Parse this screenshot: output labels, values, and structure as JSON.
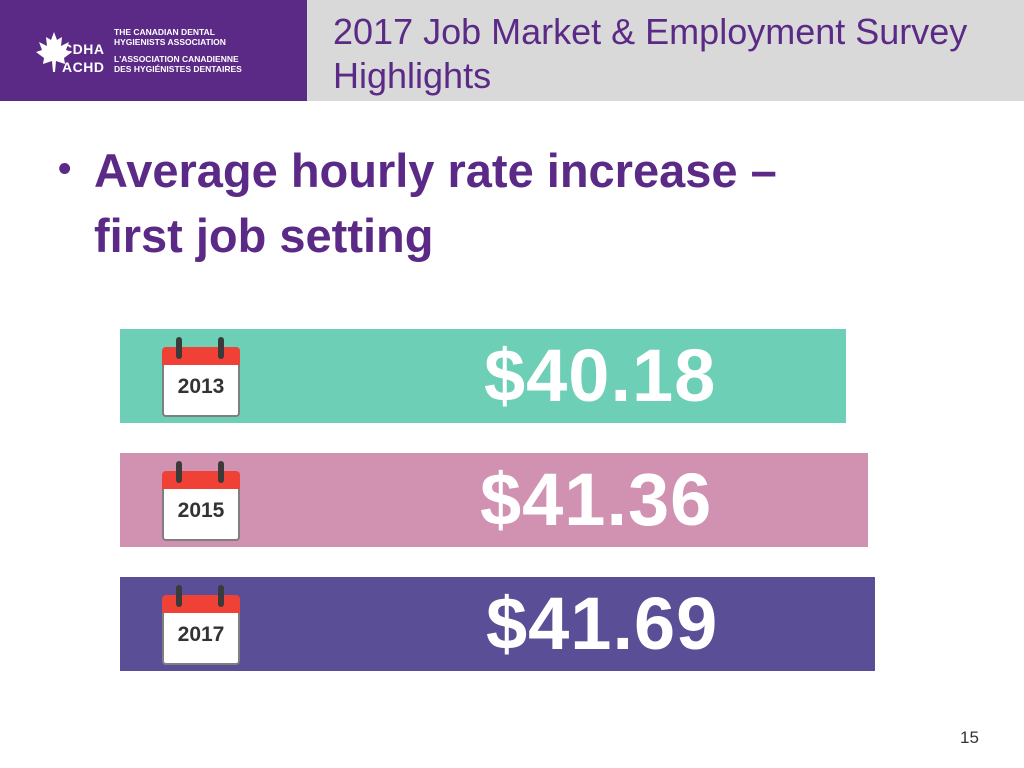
{
  "header": {
    "logo": {
      "abbr_en": "CDHA",
      "abbr_fr": "ACHD",
      "name_en_line1": "THE CANADIAN DENTAL",
      "name_en_line2": "HYGIENISTS ASSOCIATION",
      "name_fr_line1": "L'ASSOCIATION CANADIENNE",
      "name_fr_line2": "DES HYGIÉNISTES DENTAIRES"
    },
    "title": "2017 Job Market & Employment Survey Highlights"
  },
  "bullet": {
    "line1": "Average hourly rate increase –",
    "line2": "first job setting"
  },
  "rates": [
    {
      "year": "2013",
      "value": "$40.18"
    },
    {
      "year": "2015",
      "value": "$41.36"
    },
    {
      "year": "2017",
      "value": "$41.69"
    }
  ],
  "colors": {
    "brand_purple": "#5b2a86",
    "header_gray": "#d9d9d9",
    "bar_2013": "#6ccfb6",
    "bar_2015": "#d192b2",
    "bar_2017": "#5a4e96",
    "calendar_red": "#ef4136"
  },
  "icons": [
    "maple-leaf-icon",
    "calendar-icon"
  ],
  "page_number": "15"
}
